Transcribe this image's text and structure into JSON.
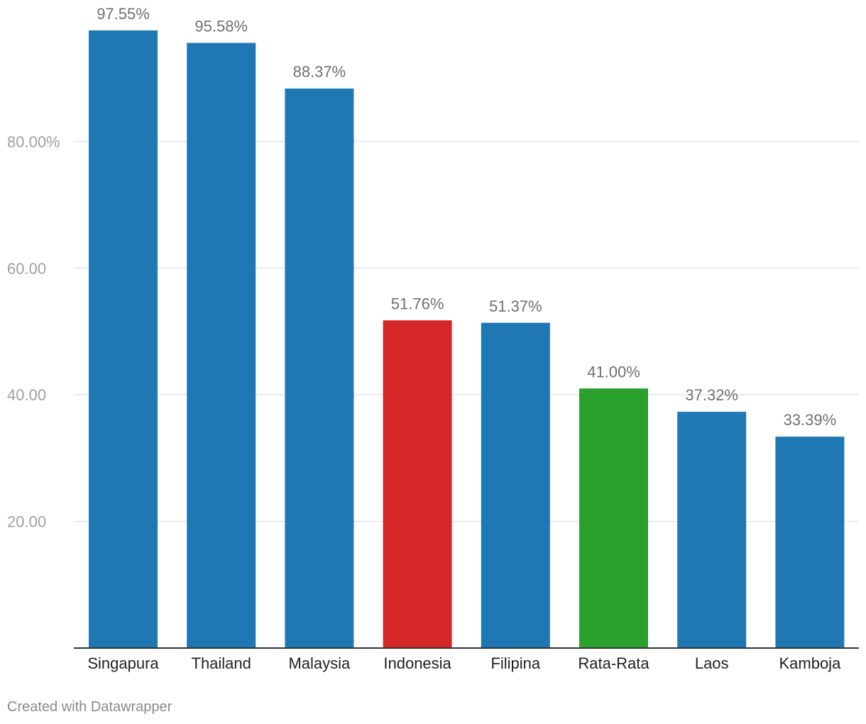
{
  "chart_data": {
    "type": "bar",
    "categories": [
      "Singapura",
      "Thailand",
      "Malaysia",
      "Indonesia",
      "Filipina",
      "Rata-Rata",
      "Laos",
      "Kamboja"
    ],
    "values": [
      97.55,
      95.58,
      88.37,
      51.76,
      51.37,
      41.0,
      37.32,
      33.39
    ],
    "value_labels": [
      "97.55%",
      "95.58%",
      "88.37%",
      "51.76%",
      "51.37%",
      "41.00%",
      "37.32%",
      "33.39%"
    ],
    "bar_colors": [
      "#1f77b4",
      "#1f77b4",
      "#1f77b4",
      "#d62728",
      "#1f77b4",
      "#2ca02c",
      "#1f77b4",
      "#1f77b4"
    ],
    "yticks": [
      20,
      40,
      60,
      80
    ],
    "ytick_labels": [
      "20.00",
      "40.00",
      "60.00",
      "80.00%"
    ],
    "ylim": [
      0,
      100
    ],
    "grid": true,
    "title": "",
    "xlabel": "",
    "ylabel": ""
  },
  "footer": {
    "credit": "Created with Datawrapper"
  }
}
